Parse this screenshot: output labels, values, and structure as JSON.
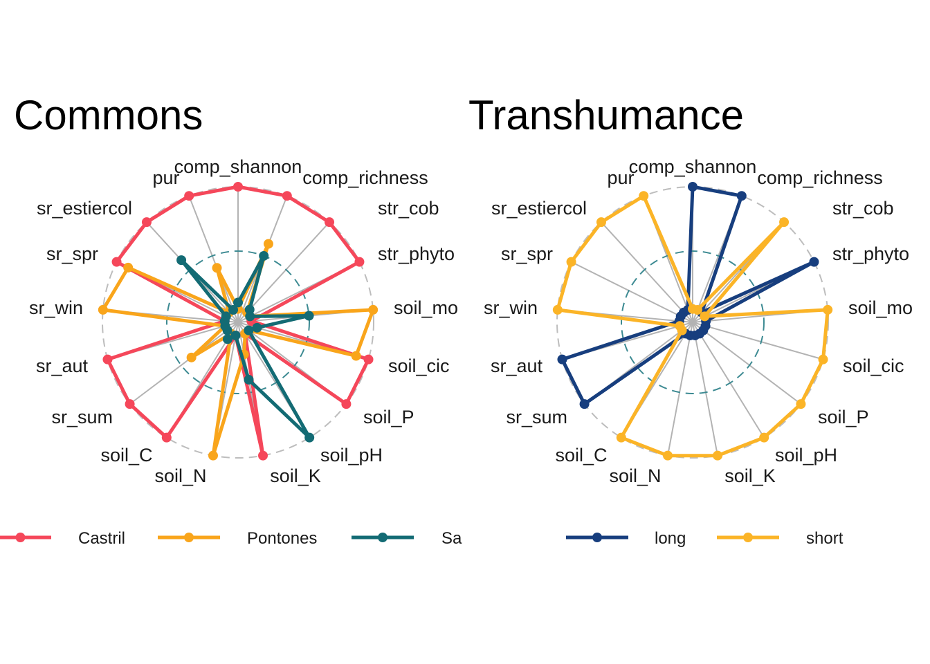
{
  "chart_data": [
    {
      "type": "radar",
      "title": "Commons",
      "axes": [
        "comp_shannon",
        "comp_richness",
        "str_cob",
        "str_phyto",
        "soil_mo",
        "soil_cic",
        "soil_P",
        "soil_pH",
        "soil_K",
        "soil_N",
        "soil_C",
        "sr_sum",
        "sr_aut",
        "sr_win",
        "sr_spr",
        "sr_estiercol",
        "pur"
      ],
      "rlim": [
        0,
        1
      ],
      "grid_levels": [
        0.5,
        1
      ],
      "series": [
        {
          "name": "Castril",
          "color": "#f5475a",
          "values": [
            1.0,
            1.0,
            1.0,
            1.0,
            0.05,
            1.0,
            1.0,
            0.05,
            1.0,
            0.05,
            1.0,
            1.0,
            1.0,
            0.05,
            1.0,
            1.0,
            1.0
          ]
        },
        {
          "name": "Pontones",
          "color": "#f9a51b",
          "values": [
            0.05,
            0.6,
            0.05,
            0.05,
            1.0,
            0.9,
            0.05,
            0.05,
            0.2,
            1.0,
            0.05,
            0.4,
            0.05,
            1.0,
            0.9,
            0.05,
            0.4
          ]
        },
        {
          "name": "Sa",
          "color": "#136b74",
          "values": [
            0.1,
            0.5,
            0.08,
            0.05,
            0.5,
            0.1,
            0.05,
            1.0,
            0.4,
            0.05,
            0.1,
            0.05,
            0.05,
            0.05,
            0.05,
            0.6,
            0.05
          ]
        }
      ]
    },
    {
      "type": "radar",
      "title": "Transhumance",
      "axes": [
        "comp_shannon",
        "comp_richness",
        "str_cob",
        "str_phyto",
        "soil_mo",
        "soil_cic",
        "soil_P",
        "soil_pH",
        "soil_K",
        "soil_N",
        "soil_C",
        "sr_sum",
        "sr_aut",
        "sr_win",
        "sr_spr",
        "sr_estiercol",
        "pur"
      ],
      "rlim": [
        0,
        1
      ],
      "grid_levels": [
        0.5,
        1
      ],
      "series": [
        {
          "name": "long",
          "color": "#173e7e",
          "values": [
            1.0,
            1.0,
            0.05,
            1.0,
            0.05,
            0.05,
            0.05,
            0.05,
            0.05,
            0.05,
            0.05,
            1.0,
            1.0,
            0.05,
            0.05,
            0.05,
            0.05
          ]
        },
        {
          "name": "short",
          "color": "#fbb427",
          "values": [
            0.05,
            0.05,
            1.0,
            0.05,
            1.0,
            1.0,
            1.0,
            1.0,
            1.0,
            1.0,
            1.0,
            0.05,
            0.05,
            1.0,
            1.0,
            1.0,
            1.0
          ]
        }
      ]
    }
  ],
  "style": {
    "axis_line_color": "#b3b3b3",
    "outer_ring_color": "#bdbdbd",
    "mid_ring_color": "#3c8a92"
  }
}
